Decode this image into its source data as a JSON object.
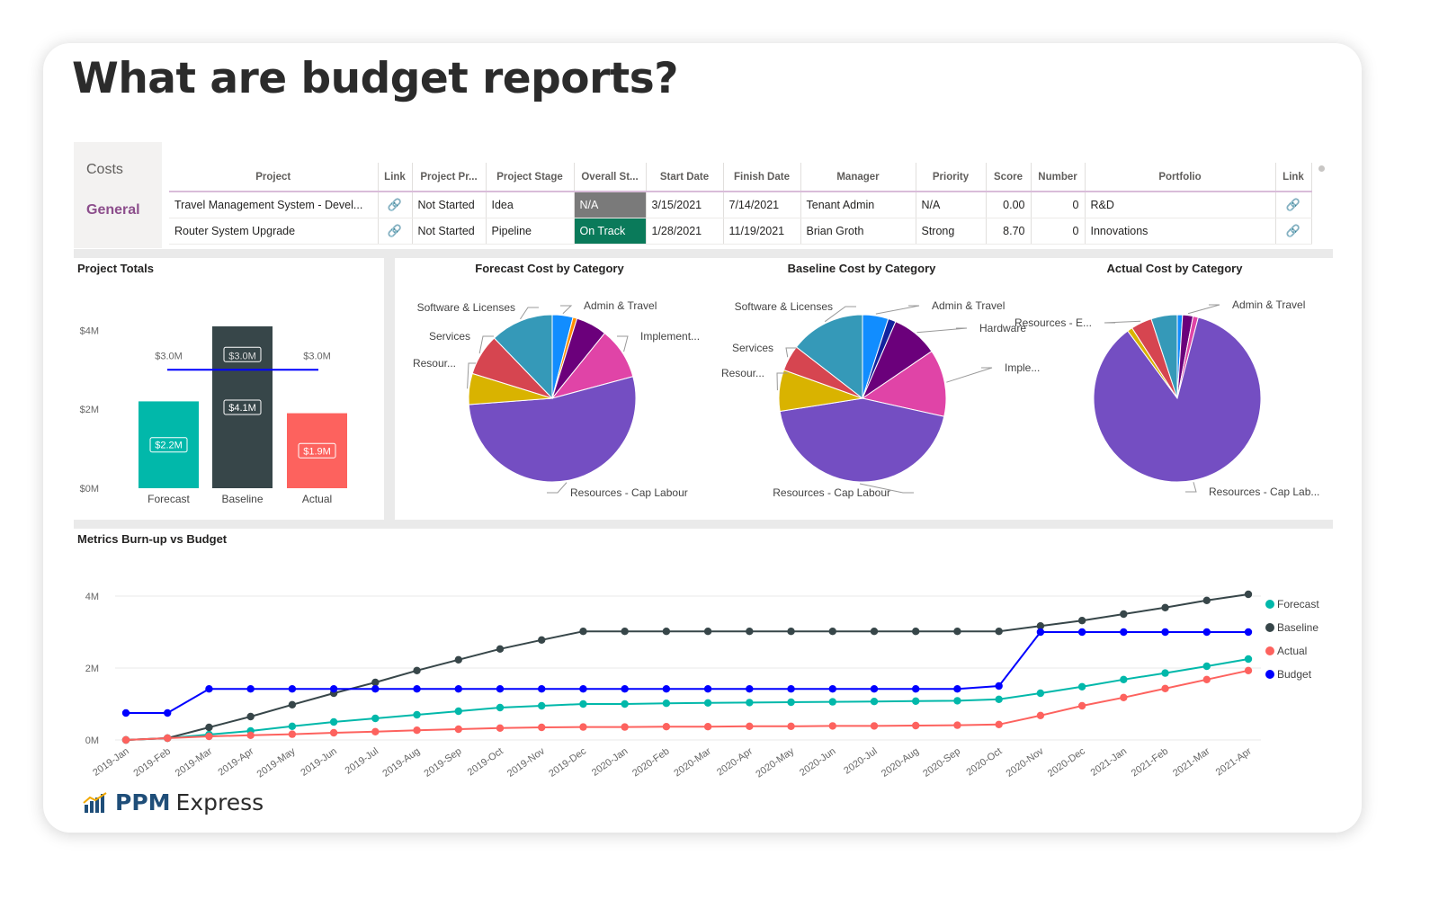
{
  "headline": "What are budget reports?",
  "sidebar": {
    "tabs": [
      "Costs",
      "General"
    ]
  },
  "table": {
    "headers": [
      "Project",
      "Link",
      "Project Pr...",
      "Project Stage",
      "Overall St...",
      "Start Date",
      "Finish Date",
      "Manager",
      "Priority",
      "Score",
      "Number",
      "Portfolio",
      "Link"
    ],
    "rows": [
      [
        "Travel Management System - Devel...",
        "🔗",
        "Not Started",
        "Idea",
        "N/A",
        "3/15/2021",
        "7/14/2021",
        "Tenant Admin",
        "N/A",
        "0.00",
        "0",
        "R&D",
        "🔗"
      ],
      [
        "Router System Upgrade",
        "🔗",
        "Not Started",
        "Pipeline",
        "On Track",
        "1/28/2021",
        "11/19/2021",
        "Brian Groth",
        "Strong",
        "8.70",
        "0",
        "Innovations",
        "🔗"
      ]
    ]
  },
  "colors": {
    "forecast": "#01b8aa",
    "baseline": "#374649",
    "actual": "#fd625e",
    "budget": "#0000ff"
  },
  "chart_data": [
    {
      "type": "bar",
      "title": "Project Totals",
      "categories": [
        "Forecast",
        "Baseline",
        "Actual"
      ],
      "values": [
        2.2,
        4.1,
        1.9
      ],
      "value_labels": [
        "$2.2M",
        "$4.1M",
        "$1.9M"
      ],
      "budget_line": 3.0,
      "budget_labels": [
        "$3.0M",
        "$3.0M",
        "$3.0M"
      ],
      "yticks": [
        "$0M",
        "$2M",
        "$4M"
      ],
      "ylim": [
        0,
        4.1
      ]
    },
    {
      "type": "pie",
      "title": "Forecast Cost by Category",
      "slices": [
        {
          "label": "Admin & Travel",
          "value": 4,
          "color": "#118dff"
        },
        {
          "label": "",
          "value": 0.8,
          "color": "#ff8c00"
        },
        {
          "label": "",
          "value": 6,
          "color": "#6b007b"
        },
        {
          "label": "Implement...",
          "value": 10,
          "color": "#e044a7"
        },
        {
          "label": "Resources - Cap Labour",
          "value": 53,
          "color": "#744ec2"
        },
        {
          "label": "Resour...",
          "value": 6,
          "color": "#d9b300"
        },
        {
          "label": "Services",
          "value": 8,
          "color": "#d64550"
        },
        {
          "label": "Software & Licenses",
          "value": 12.2,
          "color": "#3599b8"
        }
      ]
    },
    {
      "type": "pie",
      "title": "Baseline Cost by Category",
      "slices": [
        {
          "label": "Admin & Travel",
          "value": 5,
          "color": "#118dff"
        },
        {
          "label": "",
          "value": 1.5,
          "color": "#12239e"
        },
        {
          "label": "Hardware",
          "value": 9,
          "color": "#6b007b"
        },
        {
          "label": "Imple...",
          "value": 13,
          "color": "#e044a7"
        },
        {
          "label": "Resources - Cap Labour",
          "value": 44,
          "color": "#744ec2"
        },
        {
          "label": "Resour...",
          "value": 8,
          "color": "#d9b300"
        },
        {
          "label": "Services",
          "value": 5,
          "color": "#d64550"
        },
        {
          "label": "Software & Licenses",
          "value": 14.5,
          "color": "#3599b8"
        }
      ]
    },
    {
      "type": "pie",
      "title": "Actual Cost by Category",
      "slices": [
        {
          "label": "",
          "value": 1,
          "color": "#118dff"
        },
        {
          "label": "Admin & Travel",
          "value": 2,
          "color": "#6b007b"
        },
        {
          "label": "",
          "value": 1,
          "color": "#e044a7"
        },
        {
          "label": "Resources - Cap Lab...",
          "value": 85,
          "color": "#744ec2"
        },
        {
          "label": "",
          "value": 1,
          "color": "#d9b300"
        },
        {
          "label": "Resources - E...",
          "value": 4,
          "color": "#d64550"
        },
        {
          "label": "",
          "value": 5,
          "color": "#3599b8"
        }
      ]
    },
    {
      "type": "line",
      "title": "Metrics Burn-up vs Budget",
      "x": [
        "2019-Jan",
        "2019-Feb",
        "2019-Mar",
        "2019-Apr",
        "2019-May",
        "2019-Jun",
        "2019-Jul",
        "2019-Aug",
        "2019-Sep",
        "2019-Oct",
        "2019-Nov",
        "2019-Dec",
        "2020-Jan",
        "2020-Feb",
        "2020-Mar",
        "2020-Apr",
        "2020-May",
        "2020-Jun",
        "2020-Jul",
        "2020-Aug",
        "2020-Sep",
        "2020-Oct",
        "2020-Nov",
        "2020-Dec",
        "2021-Jan",
        "2021-Feb",
        "2021-Mar",
        "2021-Apr"
      ],
      "yticks": [
        "0M",
        "2M",
        "4M"
      ],
      "ylim": [
        0,
        4
      ],
      "series": [
        {
          "name": "Forecast",
          "color": "#01b8aa",
          "values": [
            0,
            0.05,
            0.15,
            0.25,
            0.38,
            0.5,
            0.6,
            0.7,
            0.8,
            0.9,
            0.95,
            1.0,
            1.0,
            1.02,
            1.03,
            1.04,
            1.05,
            1.06,
            1.07,
            1.08,
            1.09,
            1.13,
            1.3,
            1.48,
            1.68,
            1.86,
            2.05,
            2.25
          ]
        },
        {
          "name": "Baseline",
          "color": "#374649",
          "values": [
            0,
            0.05,
            0.35,
            0.65,
            0.98,
            1.3,
            1.6,
            1.93,
            2.23,
            2.53,
            2.78,
            3.02,
            3.02,
            3.02,
            3.02,
            3.02,
            3.02,
            3.02,
            3.02,
            3.02,
            3.02,
            3.02,
            3.17,
            3.32,
            3.5,
            3.68,
            3.88,
            4.05
          ]
        },
        {
          "name": "Actual",
          "color": "#fd625e",
          "values": [
            0,
            0.05,
            0.1,
            0.13,
            0.16,
            0.2,
            0.23,
            0.27,
            0.3,
            0.33,
            0.35,
            0.36,
            0.36,
            0.37,
            0.37,
            0.38,
            0.38,
            0.39,
            0.39,
            0.4,
            0.41,
            0.43,
            0.68,
            0.95,
            1.18,
            1.43,
            1.68,
            1.93
          ]
        },
        {
          "name": "Budget",
          "color": "#0000ff",
          "values": [
            0.75,
            0.75,
            1.42,
            1.42,
            1.42,
            1.42,
            1.42,
            1.42,
            1.42,
            1.42,
            1.42,
            1.42,
            1.42,
            1.42,
            1.42,
            1.42,
            1.42,
            1.42,
            1.42,
            1.42,
            1.42,
            1.5,
            3.0,
            3.0,
            3.0,
            3.0,
            3.0,
            3.0
          ]
        }
      ]
    }
  ],
  "brand": {
    "bold": "PPM",
    "light": "Express"
  }
}
